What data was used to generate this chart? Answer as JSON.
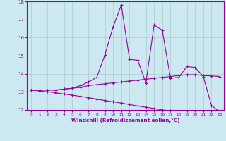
{
  "xlabel": "Windchill (Refroidissement éolien,°C)",
  "x": [
    0,
    1,
    2,
    3,
    4,
    5,
    6,
    7,
    8,
    9,
    10,
    11,
    12,
    13,
    14,
    15,
    16,
    17,
    18,
    19,
    20,
    21,
    22,
    23
  ],
  "line1": [
    13.1,
    13.1,
    13.1,
    13.1,
    13.15,
    13.2,
    13.35,
    13.55,
    13.8,
    15.05,
    16.6,
    17.8,
    14.8,
    14.75,
    13.5,
    16.7,
    16.4,
    13.75,
    13.8,
    14.4,
    14.35,
    13.85,
    12.25,
    11.9
  ],
  "line2": [
    13.1,
    13.1,
    13.1,
    13.1,
    13.15,
    13.2,
    13.25,
    13.35,
    13.4,
    13.45,
    13.5,
    13.55,
    13.6,
    13.65,
    13.7,
    13.75,
    13.8,
    13.85,
    13.9,
    13.95,
    13.95,
    13.9,
    13.88,
    13.85
  ],
  "line3": [
    13.1,
    13.05,
    13.0,
    12.95,
    12.88,
    12.82,
    12.75,
    12.68,
    12.6,
    12.52,
    12.45,
    12.38,
    12.3,
    12.22,
    12.15,
    12.08,
    12.0,
    11.95,
    11.88,
    11.82,
    11.75,
    11.68,
    11.6,
    11.85
  ],
  "line_color": "#990099",
  "bg_color": "#cce8f0",
  "grid_color": "#aacccc",
  "ylim": [
    12,
    18
  ],
  "yticks": [
    12,
    13,
    14,
    15,
    16,
    17,
    18
  ],
  "xlim": [
    -0.5,
    23.5
  ],
  "xticks": [
    0,
    1,
    2,
    3,
    4,
    5,
    6,
    7,
    8,
    9,
    10,
    11,
    12,
    13,
    14,
    15,
    16,
    17,
    18,
    19,
    20,
    21,
    22,
    23
  ]
}
